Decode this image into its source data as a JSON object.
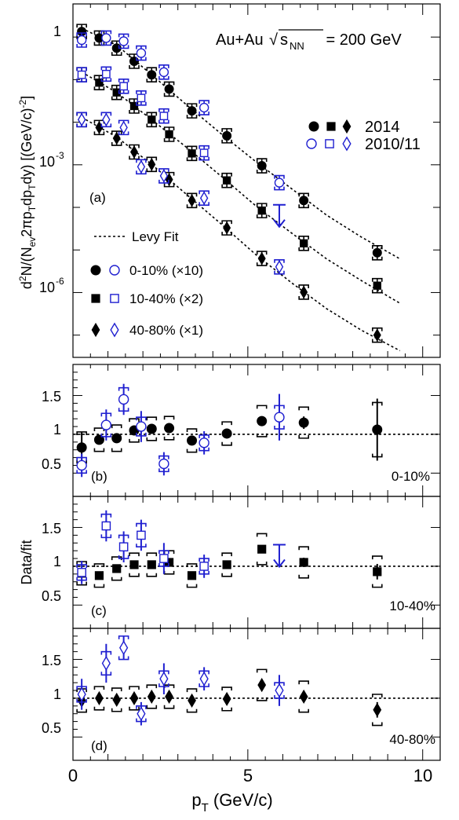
{
  "colors": {
    "data2014": "#000000",
    "data2010": "#1f1fd0",
    "fit": "#000000",
    "frame": "#000000"
  },
  "chart_data": [
    {
      "id": "a",
      "type": "scatter",
      "panel_label": "(a)",
      "title": "Au+Au",
      "title_sqrt": "s",
      "title_sub": "NN",
      "title_energy": " = 200 GeV",
      "ylabel": "d²N/(N_ev 2πp_T dp_T dy) [(GeV/c)⁻²]",
      "ylabel_parts": {
        "p1": "d",
        "p2": "2",
        "p3": "N/(N",
        "p4": "ev",
        "p5": "2πp",
        "p6": "T",
        "p7": "dp",
        "p8": "T",
        "p9": "dy) [(GeV/c)",
        "p10": "-2",
        "p11": "]"
      },
      "yscale": "log",
      "ylim": [
        3e-08,
        6
      ],
      "xlim": [
        0,
        10.5
      ],
      "yticks": [
        {
          "value": 1,
          "label": "1",
          "exp": ""
        },
        {
          "value": 0.001,
          "label": "10",
          "exp": "-3"
        },
        {
          "value": 1e-06,
          "label": "10",
          "exp": "-6"
        }
      ],
      "fit_label": "Levy Fit",
      "legend_2014": "2014",
      "legend_2010": "2010/11",
      "centrality_legend": [
        "0-10% (×10)",
        "10-40% (×2)",
        "40-80% (×1)"
      ],
      "series": [
        {
          "name": "0-10% (×10)",
          "marker": "circle",
          "dataset": "2014",
          "x": [
            0.25,
            0.75,
            1.25,
            1.75,
            2.25,
            2.75,
            3.4,
            4.4,
            5.4,
            6.6,
            8.7
          ],
          "y": [
            1.35,
            0.95,
            0.55,
            0.27,
            0.13,
            0.06,
            0.0185,
            0.0048,
            0.00095,
            0.000145,
            8.6e-06
          ],
          "fit_x": [
            0.25,
            1.25,
            2.25,
            3.25,
            4.25,
            5.25,
            6.25,
            7.25,
            8.25,
            9.35
          ],
          "fit_y": [
            1.6,
            0.65,
            0.13,
            0.0255,
            0.00525,
            0.00115,
            0.000275,
            6.6e-05,
            2e-05,
            6.2e-06
          ]
        },
        {
          "name": "0-10% (×10)",
          "marker": "circle-open",
          "dataset": "2010/11",
          "x": [
            0.25,
            0.95,
            1.45,
            1.95,
            2.6,
            3.75,
            5.9
          ],
          "y": [
            0.85,
            0.95,
            0.8,
            0.42,
            0.15,
            0.022,
            0.00038
          ]
        },
        {
          "name": "10-40% (×2)",
          "marker": "square",
          "dataset": "2014",
          "x": [
            0.25,
            0.75,
            1.25,
            1.75,
            2.25,
            2.75,
            3.4,
            4.4,
            5.4,
            6.6,
            8.7
          ],
          "y": [
            0.13,
            0.085,
            0.05,
            0.024,
            0.0115,
            0.0052,
            0.00185,
            0.00043,
            8.4e-05,
            1.43e-05,
            1.45e-06
          ],
          "fit_x": [
            0.25,
            1.25,
            2.25,
            3.25,
            4.25,
            5.25,
            6.25,
            7.25,
            8.25,
            9.35
          ],
          "fit_y": [
            0.15,
            0.05,
            0.0115,
            0.00255,
            0.00053,
            0.000105,
            2.5e-05,
            6.2e-06,
            1.9e-06,
            5.6e-07
          ]
        },
        {
          "name": "10-40% (×2)",
          "marker": "square-open",
          "dataset": "2010/11",
          "x": [
            0.25,
            0.95,
            1.45,
            1.95,
            2.6,
            3.75
          ],
          "y": [
            0.13,
            0.135,
            0.07,
            0.037,
            0.014,
            0.0019
          ]
        },
        {
          "name": "10-40% (×2) upper limit",
          "marker": "arrow-down",
          "dataset": "2010/11",
          "x": [
            5.9
          ],
          "y": [
            3.5e-05
          ]
        },
        {
          "name": "40-80% (×1)",
          "marker": "diamond",
          "dataset": "2014",
          "x": [
            0.25,
            0.75,
            1.25,
            1.75,
            2.25,
            2.75,
            3.4,
            4.4,
            5.4,
            6.6,
            8.7
          ],
          "y": [
            0.0115,
            0.0075,
            0.0042,
            0.002,
            0.00102,
            0.00045,
            0.000145,
            3.3e-05,
            6.3e-06,
            1.02e-06,
            1e-07
          ],
          "fit_x": [
            0.25,
            1.25,
            2.25,
            3.25,
            4.25,
            5.25,
            6.25,
            7.25,
            8.25,
            9.35
          ],
          "fit_y": [
            0.013,
            0.0045,
            0.00102,
            0.0002,
            4e-05,
            7.5e-06,
            1.7e-06,
            4.2e-07,
            1.3e-07,
            4.3e-08
          ]
        },
        {
          "name": "40-80% (×1)",
          "marker": "diamond-open",
          "dataset": "2010/11",
          "x": [
            0.25,
            0.95,
            1.45,
            1.95,
            2.6,
            3.75,
            5.9
          ],
          "y": [
            0.0115,
            0.0115,
            0.0075,
            0.0009,
            0.00055,
            0.000165,
            4e-06
          ]
        }
      ]
    },
    {
      "id": "b",
      "type": "scatter",
      "panel_label": "(b)",
      "centrality": "0-10%",
      "ylim": [
        0.2,
        1.9
      ],
      "xlim": [
        0,
        10.5
      ],
      "reference_line": 1,
      "yticks": [
        "0.5",
        "1",
        "1.5"
      ],
      "series": [
        {
          "name": "2014",
          "marker": "circle",
          "x": [
            0.25,
            0.75,
            1.25,
            1.75,
            2.25,
            2.75,
            3.4,
            4.4,
            5.4,
            6.6,
            8.7
          ],
          "y": [
            0.83,
            0.93,
            0.95,
            1.05,
            1.07,
            1.08,
            0.92,
            1.01,
            1.17,
            1.15,
            1.06
          ],
          "err": [
            0.2,
            0.04,
            0.04,
            0.04,
            0.04,
            0.04,
            0.05,
            0.05,
            0.06,
            0.08,
            0.4
          ],
          "sys": [
            0.2,
            0.15,
            0.17,
            0.15,
            0.15,
            0.15,
            0.15,
            0.15,
            0.2,
            0.2,
            0.35
          ]
        },
        {
          "name": "2010/11",
          "marker": "circle-open",
          "x": [
            0.25,
            0.95,
            1.45,
            1.95,
            2.6,
            3.75,
            5.9
          ],
          "y": [
            0.6,
            1.12,
            1.45,
            1.1,
            0.62,
            0.89,
            1.22
          ],
          "err": [
            0.15,
            0.2,
            0.2,
            0.2,
            0.15,
            0.15,
            0.3
          ],
          "sys": [
            0.1,
            0.15,
            0.15,
            0.12,
            0.1,
            0.1,
            0.15
          ]
        }
      ]
    },
    {
      "id": "c",
      "type": "scatter",
      "panel_label": "(c)",
      "centrality": "10-40%",
      "ylabel": "Data/fit",
      "ylim": [
        0.2,
        1.9
      ],
      "xlim": [
        0,
        10.5
      ],
      "reference_line": 1,
      "yticks": [
        "0.5",
        "1",
        "1.5"
      ],
      "series": [
        {
          "name": "2014",
          "marker": "square",
          "x": [
            0.25,
            0.75,
            1.25,
            1.75,
            2.25,
            2.75,
            3.4,
            4.4,
            5.4,
            6.6,
            8.7
          ],
          "y": [
            0.91,
            0.88,
            0.97,
            1.02,
            1.02,
            1.05,
            0.88,
            1.02,
            1.22,
            1.05,
            0.93
          ],
          "err": [
            0.06,
            0.03,
            0.03,
            0.03,
            0.03,
            0.03,
            0.04,
            0.04,
            0.05,
            0.06,
            0.1
          ],
          "sys": [
            0.15,
            0.15,
            0.15,
            0.15,
            0.15,
            0.15,
            0.15,
            0.15,
            0.2,
            0.2,
            0.2
          ]
        },
        {
          "name": "2010/11",
          "marker": "square-open",
          "x": [
            0.25,
            0.95,
            1.45,
            1.95,
            2.6,
            3.75
          ],
          "y": [
            0.92,
            1.52,
            1.25,
            1.4,
            1.1,
            1.0
          ],
          "err": [
            0.15,
            0.2,
            0.2,
            0.2,
            0.2,
            0.15
          ],
          "sys": [
            0.1,
            0.15,
            0.15,
            0.15,
            0.1,
            0.1
          ]
        },
        {
          "name": "2010/11 upper limit",
          "marker": "arrow-down",
          "x": [
            5.9
          ],
          "y": [
            1.5
          ]
        }
      ]
    },
    {
      "id": "d",
      "type": "scatter",
      "panel_label": "(d)",
      "centrality": "40-80%",
      "xlabel": "p_T (GeV/c)",
      "xlabel_main": "p",
      "xlabel_sub": "T",
      "xlabel_unit": " (GeV/c)",
      "ylim": [
        0.2,
        1.9
      ],
      "xlim": [
        0,
        10.5
      ],
      "reference_line": 1,
      "yticks": [
        "0.5",
        "1",
        "1.5"
      ],
      "xticks": [
        "0",
        "5",
        "10"
      ],
      "series": [
        {
          "name": "2014",
          "marker": "diamond",
          "x": [
            0.25,
            0.75,
            1.25,
            1.75,
            2.25,
            2.75,
            3.4,
            4.4,
            5.4,
            6.6,
            8.7
          ],
          "y": [
            0.97,
            1.0,
            0.98,
            1.0,
            1.02,
            1.02,
            0.97,
            0.99,
            1.17,
            1.02,
            0.85
          ],
          "err": [
            0.05,
            0.03,
            0.03,
            0.03,
            0.03,
            0.03,
            0.04,
            0.04,
            0.05,
            0.06,
            0.1
          ],
          "sys": [
            0.15,
            0.15,
            0.15,
            0.15,
            0.15,
            0.15,
            0.15,
            0.15,
            0.2,
            0.2,
            0.2
          ]
        },
        {
          "name": "2010/11",
          "marker": "diamond-open",
          "x": [
            0.25,
            0.95,
            1.45,
            1.95,
            2.6,
            3.75,
            5.9
          ],
          "y": [
            1.05,
            1.45,
            1.65,
            0.8,
            1.25,
            1.25,
            1.1
          ],
          "err": [
            0.2,
            0.25,
            0.15,
            0.15,
            0.2,
            0.15,
            0.2
          ],
          "sys": [
            0.1,
            0.15,
            0.15,
            0.1,
            0.1,
            0.1,
            0.1
          ]
        }
      ]
    }
  ]
}
